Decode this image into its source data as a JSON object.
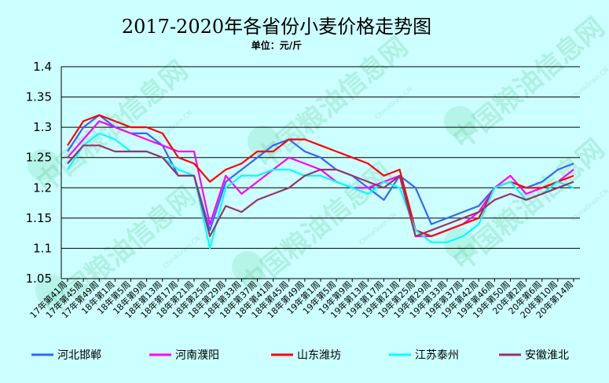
{
  "watermark": {
    "text": "中国粮油信息网",
    "sub": "ChinaGrain.CN"
  },
  "chart_data": {
    "type": "line",
    "title": "2017-2020年各省份小麦价格走势图",
    "subtitle": "单位：元/斤",
    "ylim": [
      1.05,
      1.4
    ],
    "yticks": [
      "1.4",
      "1.35",
      "1.3",
      "1.25",
      "1.2",
      "1.15",
      "1.1",
      "1.05"
    ],
    "grid": true,
    "legend_position": "bottom",
    "categories": [
      "17年第41周",
      "17年第45周",
      "17年第49周",
      "18年第1周",
      "18年第5周",
      "18年第9周",
      "18年第13周",
      "18年第17周",
      "18年第21周",
      "18年第25周",
      "18年第29周",
      "18年第33周",
      "18年第37周",
      "18年第41周",
      "18年第45周",
      "18年第49周",
      "19年第1周",
      "19年第5周",
      "19年第9周",
      "19年第13周",
      "19年第17周",
      "19年第21周",
      "19年第25周",
      "19年第29周",
      "19年第33周",
      "19年第37周",
      "19年第42周",
      "19年第46周",
      "19年第50周",
      "20年第2周",
      "20年第6周",
      "20年第10周",
      "20年第14周"
    ],
    "series": [
      {
        "name": "河北邯郸",
        "color": "#3366FF",
        "values": [
          1.26,
          1.3,
          1.32,
          1.3,
          1.29,
          1.29,
          1.27,
          1.22,
          1.22,
          1.13,
          1.21,
          1.23,
          1.25,
          1.27,
          1.28,
          1.26,
          1.25,
          1.23,
          1.22,
          1.2,
          1.18,
          1.22,
          1.2,
          1.14,
          1.15,
          1.16,
          1.17,
          1.2,
          1.21,
          1.2,
          1.21,
          1.23,
          1.24
        ]
      },
      {
        "name": "河南濮阳",
        "color": "#FF00FF",
        "values": [
          1.25,
          1.28,
          1.31,
          1.3,
          1.29,
          1.28,
          1.27,
          1.26,
          1.26,
          1.14,
          1.22,
          1.19,
          1.21,
          1.23,
          1.25,
          1.24,
          1.23,
          1.21,
          1.2,
          1.2,
          1.21,
          1.22,
          1.12,
          1.12,
          1.13,
          1.14,
          1.16,
          1.2,
          1.22,
          1.19,
          1.2,
          1.21,
          1.23
        ]
      },
      {
        "name": "山东潍坊",
        "color": "#FF0000",
        "values": [
          1.27,
          1.31,
          1.32,
          1.31,
          1.3,
          1.3,
          1.29,
          1.25,
          1.24,
          1.21,
          1.23,
          1.24,
          1.26,
          1.26,
          1.28,
          1.28,
          1.27,
          1.26,
          1.25,
          1.24,
          1.22,
          1.23,
          1.13,
          1.12,
          1.13,
          1.14,
          1.15,
          1.2,
          1.21,
          1.2,
          1.2,
          1.21,
          1.22
        ]
      },
      {
        "name": "江苏泰州",
        "color": "#00FFFF",
        "values": [
          1.23,
          1.27,
          1.29,
          1.28,
          1.26,
          1.26,
          1.25,
          1.23,
          1.22,
          1.1,
          1.2,
          1.22,
          1.22,
          1.23,
          1.23,
          1.22,
          1.22,
          1.21,
          1.2,
          1.19,
          1.21,
          1.2,
          1.13,
          1.11,
          1.11,
          1.12,
          1.14,
          1.2,
          1.21,
          1.18,
          1.19,
          1.21,
          1.2
        ]
      },
      {
        "name": "安徽淮北",
        "color": "#993366",
        "values": [
          1.24,
          1.27,
          1.27,
          1.26,
          1.26,
          1.26,
          1.25,
          1.22,
          1.22,
          1.12,
          1.17,
          1.16,
          1.18,
          1.19,
          1.2,
          1.22,
          1.23,
          1.23,
          1.22,
          1.21,
          1.2,
          1.22,
          1.12,
          1.13,
          1.14,
          1.15,
          1.16,
          1.18,
          1.19,
          1.18,
          1.19,
          1.2,
          1.21
        ]
      }
    ]
  }
}
